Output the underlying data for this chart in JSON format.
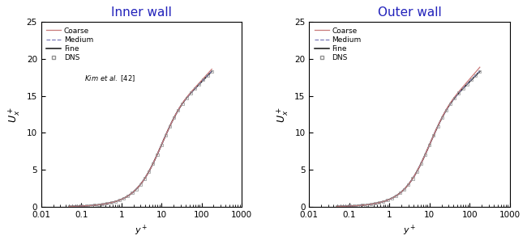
{
  "title_left": "Inner wall",
  "title_right": "Outer wall",
  "xlabel": "$y^+$",
  "ylabel_left": "$U_x^+$",
  "ylabel_right": "$U_x^+$",
  "ylim": [
    0,
    25
  ],
  "xlim_left": [
    0.01,
    1000
  ],
  "xlim_right": [
    0.01,
    1000
  ],
  "yticks": [
    0,
    5,
    10,
    15,
    20,
    25
  ],
  "xticks": [
    0.01,
    0.1,
    1,
    10,
    100,
    1000
  ],
  "xticklabels": [
    "0.01",
    "0.1",
    "1",
    "10",
    "100",
    "1000"
  ],
  "coarse_color": "#c87878",
  "medium_color": "#7878b8",
  "fine_color": "#101010",
  "dns_color": "#909090",
  "title_color": "#2222bb",
  "background_color": "#ffffff",
  "figsize": [
    6.5,
    3.02
  ],
  "dpi": 100
}
